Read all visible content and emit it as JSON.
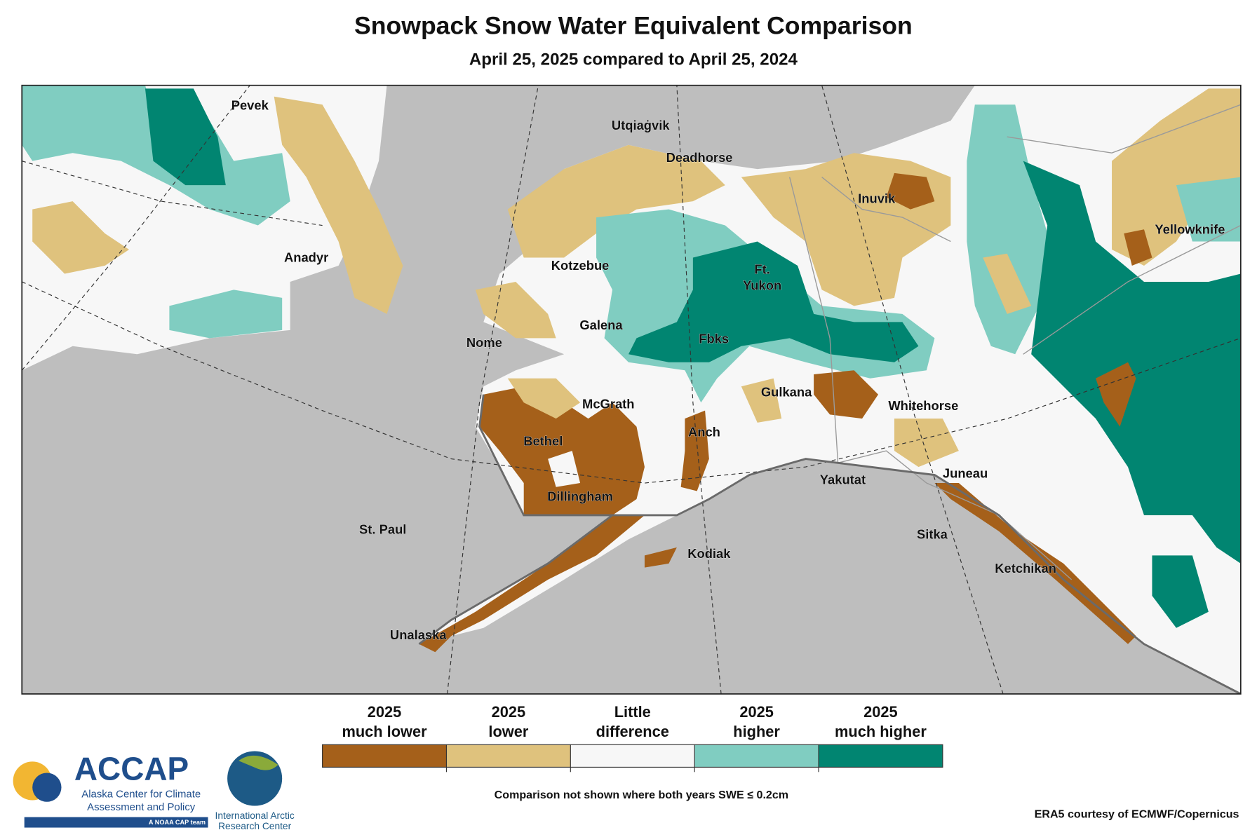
{
  "header": {
    "title": "Snowpack Snow Water Equivalent Comparison",
    "subtitle": "April 25, 2025 compared to April 25, 2024"
  },
  "cities": [
    "Pevek",
    "Utqiaġvik",
    "Deadhorse",
    "Inuvik",
    "Yellowknife",
    "Anadyr",
    "Kotzebue",
    [
      "Ft.",
      "Yukon"
    ],
    "Galena",
    "Nome",
    "Fbks",
    "Gulkana",
    "Whitehorse",
    "McGrath",
    "Anch",
    "Bethel",
    "Juneau",
    "Yakutat",
    "Dillingham",
    "St. Paul",
    "Sitka",
    "Kodiak",
    "Ketchikan",
    "Unalaska"
  ],
  "legend": {
    "items": [
      {
        "lines": [
          "2025",
          "much lower"
        ],
        "color": "#a5601a"
      },
      {
        "lines": [
          "2025",
          "lower"
        ],
        "color": "#dfc27d"
      },
      {
        "lines": [
          "Little",
          "difference"
        ],
        "color": "#f7f7f7"
      },
      {
        "lines": [
          "2025",
          "higher"
        ],
        "color": "#80cdc1"
      },
      {
        "lines": [
          "2025",
          "much higher"
        ],
        "color": "#018571"
      }
    ]
  },
  "notes": {
    "threshold": "Comparison not shown where both years SWE ≤ 0.2cm",
    "source": "ERA5 courtesy of ECMWF/Copernicus"
  },
  "logos": {
    "accap": {
      "name": "ACCAP",
      "line1": "Alaska Center for Climate",
      "line2": "Assessment and Policy",
      "tag": "A NOAA CAP team"
    },
    "iarc": {
      "line1": "International Arctic",
      "line2": "Research Center"
    }
  }
}
